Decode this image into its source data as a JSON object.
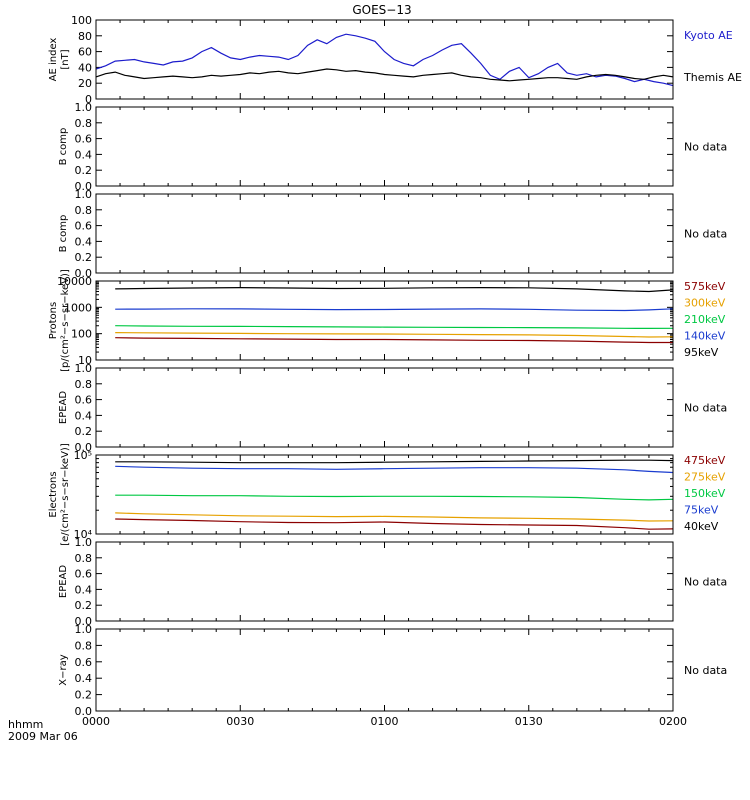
{
  "title": "GOES−13",
  "footer": {
    "xaxis_label": "hhmm",
    "date": "2009 Mar 06"
  },
  "colors": {
    "axis": "#000000",
    "kyoto": "#1c1ccc",
    "themis": "#000000",
    "p575": "#8b0000",
    "p300": "#e6a100",
    "p210": "#00c843",
    "p140": "#1a3ccf",
    "p95": "#000000"
  },
  "chart_data": [
    {
      "id": "ae",
      "type": "line",
      "ylabel_lines": [
        "AE index",
        "[nT]"
      ],
      "ylim": [
        0,
        100
      ],
      "yticks": [
        "0",
        "20",
        "40",
        "60",
        "80",
        "100"
      ],
      "x_minutes": [
        0,
        2,
        4,
        6,
        8,
        10,
        12,
        14,
        16,
        18,
        20,
        22,
        24,
        26,
        28,
        30,
        32,
        34,
        36,
        38,
        40,
        42,
        44,
        46,
        48,
        50,
        52,
        54,
        56,
        58,
        60,
        62,
        64,
        66,
        68,
        70,
        72,
        74,
        76,
        78,
        80,
        82,
        84,
        86,
        88,
        90,
        92,
        94,
        96,
        98,
        100,
        102,
        104,
        106,
        108,
        110,
        112,
        114,
        116,
        118,
        120
      ],
      "series": [
        {
          "name": "Kyoto AE",
          "color_key": "kyoto",
          "values": [
            38,
            42,
            48,
            49,
            50,
            47,
            45,
            43,
            47,
            48,
            52,
            60,
            65,
            58,
            52,
            50,
            53,
            55,
            54,
            53,
            50,
            55,
            68,
            75,
            70,
            78,
            82,
            80,
            77,
            73,
            60,
            50,
            45,
            42,
            50,
            55,
            62,
            68,
            70,
            58,
            45,
            30,
            25,
            35,
            40,
            27,
            32,
            40,
            45,
            33,
            30,
            32,
            28,
            30,
            29,
            26,
            22,
            25,
            22,
            20,
            17
          ]
        },
        {
          "name": "Themis AE",
          "color_key": "themis",
          "values": [
            28,
            32,
            34,
            30,
            28,
            26,
            27,
            28,
            29,
            28,
            27,
            28,
            30,
            29,
            30,
            31,
            33,
            32,
            34,
            35,
            33,
            32,
            34,
            36,
            38,
            37,
            35,
            36,
            34,
            33,
            31,
            30,
            29,
            28,
            30,
            31,
            32,
            33,
            30,
            28,
            27,
            25,
            24,
            23,
            24,
            25,
            26,
            27,
            27,
            26,
            25,
            28,
            30,
            31,
            30,
            28,
            26,
            25,
            28,
            30,
            28
          ]
        }
      ]
    },
    {
      "id": "b1",
      "type": "line",
      "ylabel_lines": [
        "B comp"
      ],
      "ylim": [
        0,
        1
      ],
      "yticks": [
        "0.0",
        "0.2",
        "0.4",
        "0.6",
        "0.8",
        "1.0"
      ],
      "status": "No data"
    },
    {
      "id": "b2",
      "type": "line",
      "ylabel_lines": [
        "B comp"
      ],
      "ylim": [
        0,
        1
      ],
      "yticks": [
        "0.0",
        "0.2",
        "0.4",
        "0.6",
        "0.8",
        "1.0"
      ],
      "status": "No data"
    },
    {
      "id": "protons",
      "type": "line",
      "ylabel_lines": [
        "Protons",
        "[p/(cm²−s−sr−keV)]"
      ],
      "yscale": "log",
      "ylim": [
        10,
        10000
      ],
      "yticks": [
        "10",
        "100",
        "1000",
        "10000"
      ],
      "x_minutes": [
        4,
        10,
        20,
        30,
        40,
        50,
        60,
        70,
        80,
        90,
        100,
        110,
        115,
        120
      ],
      "series": [
        {
          "name": "575keV",
          "color_key": "p575",
          "values": [
            70,
            68,
            66,
            64,
            62,
            60,
            60,
            58,
            56,
            55,
            52,
            48,
            46,
            46
          ]
        },
        {
          "name": "300keV",
          "color_key": "p300",
          "values": [
            110,
            108,
            105,
            102,
            100,
            98,
            97,
            95,
            92,
            90,
            85,
            78,
            75,
            76
          ]
        },
        {
          "name": "210keV",
          "color_key": "p210",
          "values": [
            200,
            195,
            190,
            188,
            185,
            180,
            178,
            175,
            172,
            170,
            165,
            160,
            158,
            160
          ]
        },
        {
          "name": "140keV",
          "color_key": "p140",
          "values": [
            850,
            860,
            880,
            870,
            840,
            820,
            830,
            860,
            870,
            840,
            780,
            760,
            800,
            880
          ]
        },
        {
          "name": "95keV",
          "color_key": "p95",
          "values": [
            5000,
            5200,
            5400,
            5600,
            5400,
            5200,
            5300,
            5500,
            5600,
            5500,
            5000,
            4200,
            4000,
            4600
          ]
        }
      ]
    },
    {
      "id": "epead1",
      "type": "line",
      "ylabel_lines": [
        "EPEAD"
      ],
      "ylim": [
        0,
        1
      ],
      "yticks": [
        "0.0",
        "0.2",
        "0.4",
        "0.6",
        "0.8",
        "1.0"
      ],
      "status": "No data"
    },
    {
      "id": "electrons",
      "type": "line",
      "ylabel_lines": [
        "Electrons",
        "[e/(cm²−s−sr−keV)]"
      ],
      "yscale": "log",
      "ylim": [
        10000,
        100000
      ],
      "yticks": [
        "10⁴",
        "10⁵"
      ],
      "x_minutes": [
        4,
        10,
        20,
        30,
        40,
        50,
        60,
        70,
        80,
        90,
        100,
        110,
        115,
        120
      ],
      "series": [
        {
          "name": "475keV",
          "color_key": "p575",
          "values": [
            15500,
            15200,
            14800,
            14300,
            14000,
            13900,
            14200,
            13600,
            13200,
            13000,
            12800,
            12000,
            11500,
            11600
          ]
        },
        {
          "name": "275keV",
          "color_key": "p300",
          "values": [
            18500,
            18000,
            17500,
            17000,
            16800,
            16600,
            16700,
            16400,
            16000,
            15800,
            15500,
            15000,
            14600,
            14700
          ]
        },
        {
          "name": "150keV",
          "color_key": "p210",
          "values": [
            31000,
            31000,
            30500,
            30500,
            30000,
            29800,
            30000,
            30000,
            29800,
            29600,
            29000,
            27500,
            27000,
            27500
          ]
        },
        {
          "name": "75keV",
          "color_key": "p140",
          "values": [
            72000,
            70000,
            68000,
            67000,
            67000,
            66000,
            67000,
            68000,
            69000,
            69000,
            68000,
            65000,
            62000,
            60000
          ]
        },
        {
          "name": "40keV",
          "color_key": "p95",
          "values": [
            82000,
            82000,
            81000,
            80000,
            80000,
            80000,
            81000,
            82000,
            83000,
            84000,
            85000,
            86000,
            86000,
            85000
          ]
        }
      ]
    },
    {
      "id": "epead2",
      "type": "line",
      "ylabel_lines": [
        "EPEAD"
      ],
      "ylim": [
        0,
        1
      ],
      "yticks": [
        "0.0",
        "0.2",
        "0.4",
        "0.6",
        "0.8",
        "1.0"
      ],
      "status": "No data"
    },
    {
      "id": "xray",
      "type": "line",
      "ylabel_lines": [
        "X−ray"
      ],
      "ylim": [
        0,
        1
      ],
      "yticks": [
        "0.0",
        "0.2",
        "0.4",
        "0.6",
        "0.8",
        "1.0"
      ],
      "status": "No data"
    }
  ],
  "x_axis": {
    "range_minutes": [
      0,
      120
    ],
    "ticks": [
      {
        "label": "0000",
        "minute": 0
      },
      {
        "label": "0030",
        "minute": 30
      },
      {
        "label": "0100",
        "minute": 60
      },
      {
        "label": "0130",
        "minute": 90
      },
      {
        "label": "0200",
        "minute": 120
      }
    ]
  }
}
